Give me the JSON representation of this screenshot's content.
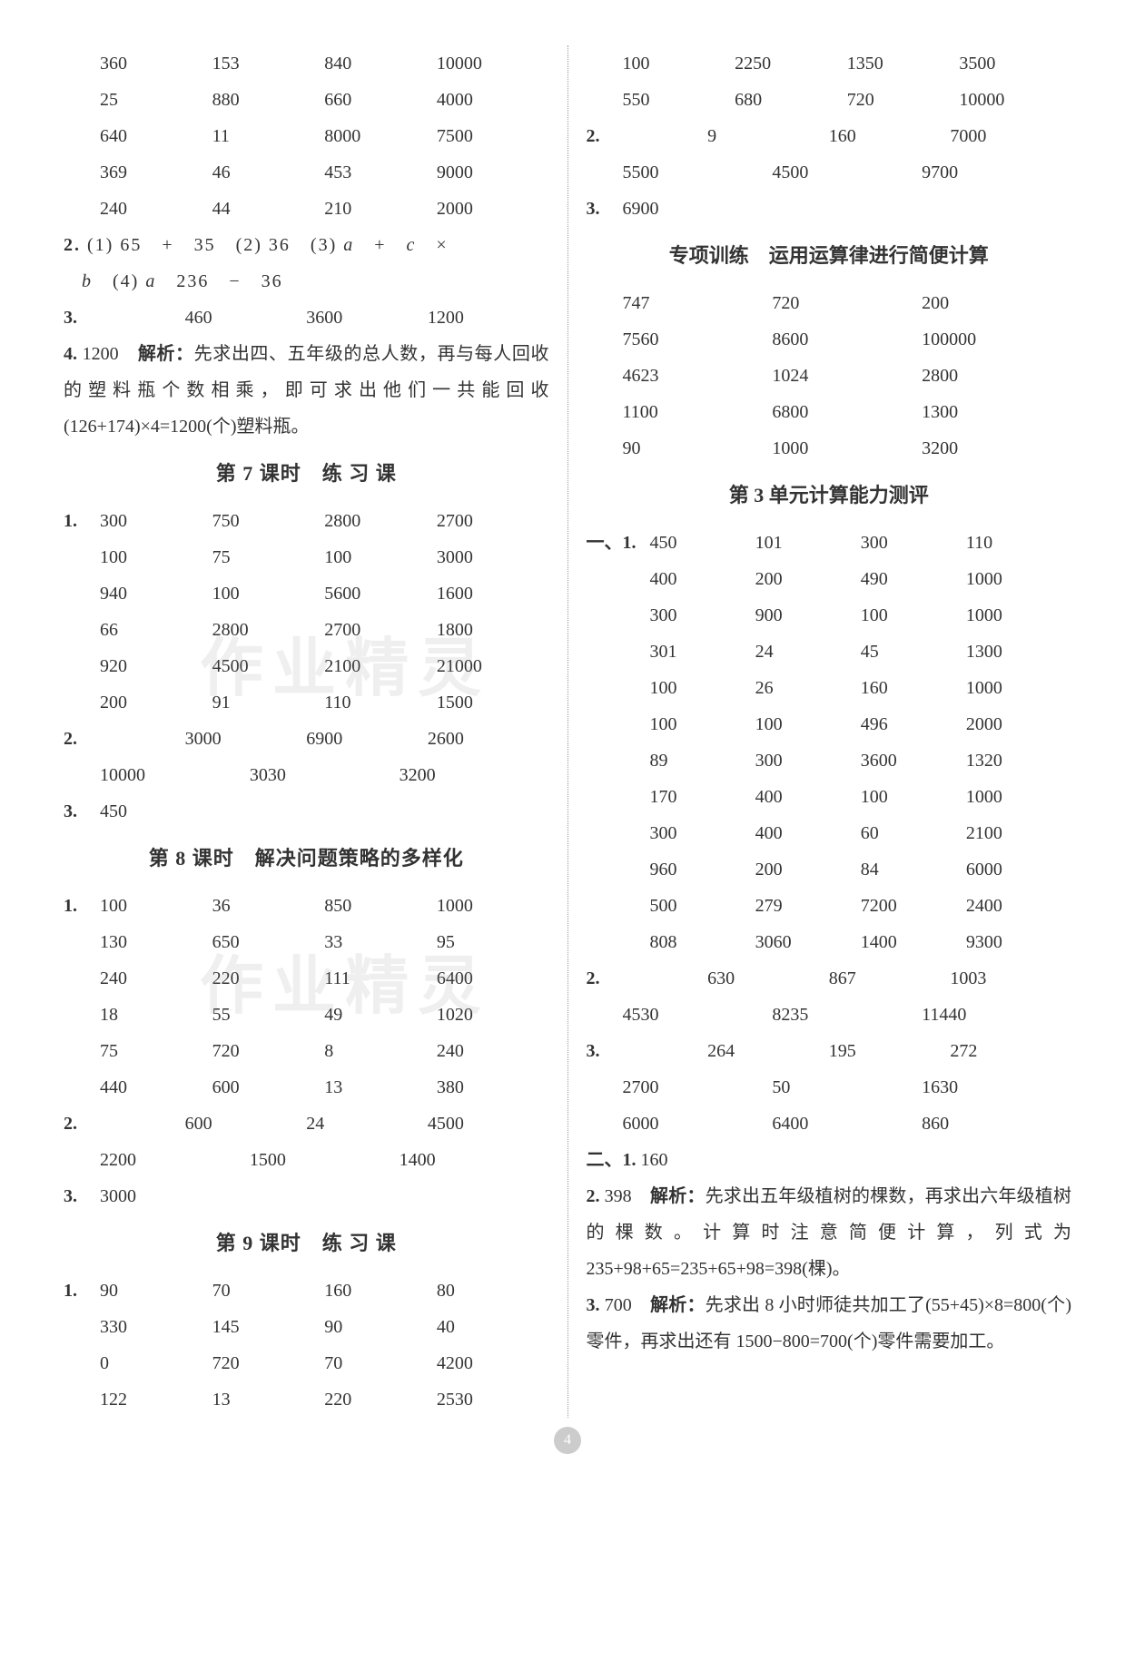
{
  "left": {
    "block1_rows": [
      [
        "360",
        "153",
        "840",
        "10000"
      ],
      [
        "25",
        "880",
        "660",
        "4000"
      ],
      [
        "640",
        "11",
        "8000",
        "7500"
      ],
      [
        "369",
        "46",
        "453",
        "9000"
      ],
      [
        "240",
        "44",
        "210",
        "2000"
      ]
    ],
    "q2_line1_prefix": "2.",
    "q2_line1": " (1) 65　+　35　(2) 36　(3) ",
    "q2_line1_a": "a",
    "q2_line1_mid": "　+　",
    "q2_line1_c": "c",
    "q2_line1_end": "　×",
    "q2_line2_b": "b",
    "q2_line2_mid": "　(4) ",
    "q2_line2_a": "a",
    "q2_line2_end": "　236　−　36",
    "q3_prefix": "3.",
    "q3_vals": [
      "460",
      "3600",
      "1200"
    ],
    "q4_prefix": "4.",
    "q4_text_a": " 1200　",
    "q4_bold": "解析：",
    "q4_text_b": "先求出四、五年级的总人数，再与每人回收的塑料瓶个数相乘，即可求出他们一共能回收(126+174)×4=1200(个)塑料瓶。",
    "h7": "第 7 课时　练 习 课",
    "b7_q1": "1.",
    "b7_rows": [
      [
        "300",
        "750",
        "2800",
        "2700"
      ],
      [
        "100",
        "75",
        "100",
        "3000"
      ],
      [
        "940",
        "100",
        "5600",
        "1600"
      ],
      [
        "66",
        "2800",
        "2700",
        "1800"
      ],
      [
        "920",
        "4500",
        "2100",
        "21000"
      ],
      [
        "200",
        "91",
        "110",
        "1500"
      ]
    ],
    "b7_q2": "2.",
    "b7_q2_rows": [
      [
        "3000",
        "6900",
        "2600"
      ],
      [
        "10000",
        "3030",
        "3200"
      ]
    ],
    "b7_q3": "3.",
    "b7_q3_val": "450",
    "h8": "第 8 课时　解决问题策略的多样化",
    "b8_q1": "1.",
    "b8_rows": [
      [
        "100",
        "36",
        "850",
        "1000"
      ],
      [
        "130",
        "650",
        "33",
        "95"
      ],
      [
        "240",
        "220",
        "111",
        "6400"
      ],
      [
        "18",
        "55",
        "49",
        "1020"
      ],
      [
        "75",
        "720",
        "8",
        "240"
      ],
      [
        "440",
        "600",
        "13",
        "380"
      ]
    ],
    "b8_q2": "2.",
    "b8_q2_rows": [
      [
        "600",
        "24",
        "4500"
      ],
      [
        "2200",
        "1500",
        "1400"
      ]
    ],
    "b8_q3": "3.",
    "b8_q3_val": "3000",
    "h9": "第 9 课时　练 习 课",
    "b9_q1": "1.",
    "b9_rows": [
      [
        "90",
        "70",
        "160",
        "80"
      ],
      [
        "330",
        "145",
        "90",
        "40"
      ],
      [
        "0",
        "720",
        "70",
        "4200"
      ],
      [
        "122",
        "13",
        "220",
        "2530"
      ]
    ]
  },
  "right": {
    "top_rows": [
      [
        "100",
        "2250",
        "1350",
        "3500"
      ],
      [
        "550",
        "680",
        "720",
        "10000"
      ]
    ],
    "q2": "2.",
    "q2_rows": [
      [
        "9",
        "160",
        "7000"
      ],
      [
        "5500",
        "4500",
        "9700"
      ]
    ],
    "q3": "3.",
    "q3_val": "6900",
    "h_train": "专项训练　运用运算律进行简便计算",
    "train_rows": [
      [
        "747",
        "720",
        "200"
      ],
      [
        "7560",
        "8600",
        "100000"
      ],
      [
        "4623",
        "1024",
        "2800"
      ],
      [
        "1100",
        "6800",
        "1300"
      ],
      [
        "90",
        "1000",
        "3200"
      ]
    ],
    "h_unit3": "第 3 单元计算能力测评",
    "u3_q1_prefix": "一、1.",
    "u3_rows": [
      [
        "450",
        "101",
        "300",
        "110"
      ],
      [
        "400",
        "200",
        "490",
        "1000"
      ],
      [
        "300",
        "900",
        "100",
        "1000"
      ],
      [
        "301",
        "24",
        "45",
        "1300"
      ],
      [
        "100",
        "26",
        "160",
        "1000"
      ],
      [
        "100",
        "100",
        "496",
        "2000"
      ],
      [
        "89",
        "300",
        "3600",
        "1320"
      ],
      [
        "170",
        "400",
        "100",
        "1000"
      ],
      [
        "300",
        "400",
        "60",
        "2100"
      ],
      [
        "960",
        "200",
        "84",
        "6000"
      ],
      [
        "500",
        "279",
        "7200",
        "2400"
      ],
      [
        "808",
        "3060",
        "1400",
        "9300"
      ]
    ],
    "u3_q2": "2.",
    "u3_q2_rows": [
      [
        "630",
        "867",
        "1003"
      ],
      [
        "4530",
        "8235",
        "11440"
      ]
    ],
    "u3_q3": "3.",
    "u3_q3_rows": [
      [
        "264",
        "195",
        "272"
      ],
      [
        "2700",
        "50",
        "1630"
      ],
      [
        "6000",
        "6400",
        "860"
      ]
    ],
    "u3_two_prefix": "二、1.",
    "u3_two_val": " 160",
    "u3_two_q2": "2.",
    "u3_two_q2_a": " 398　",
    "u3_two_q2_bold": "解析：",
    "u3_two_q2_b": "先求出五年级植树的棵数，再求出六年级植树的棵数。计算时注意简便计算，列式为 235+98+65=235+65+98=398(棵)。",
    "u3_two_q3": "3.",
    "u3_two_q3_a": " 700　",
    "u3_two_q3_bold": "解析：",
    "u3_two_q3_b": "先求出 8 小时师徒共加工了(55+45)×8=800(个)零件，再求出还有 1500−800=700(个)零件需要加工。"
  },
  "watermark": "作业精灵",
  "page_num": "4"
}
